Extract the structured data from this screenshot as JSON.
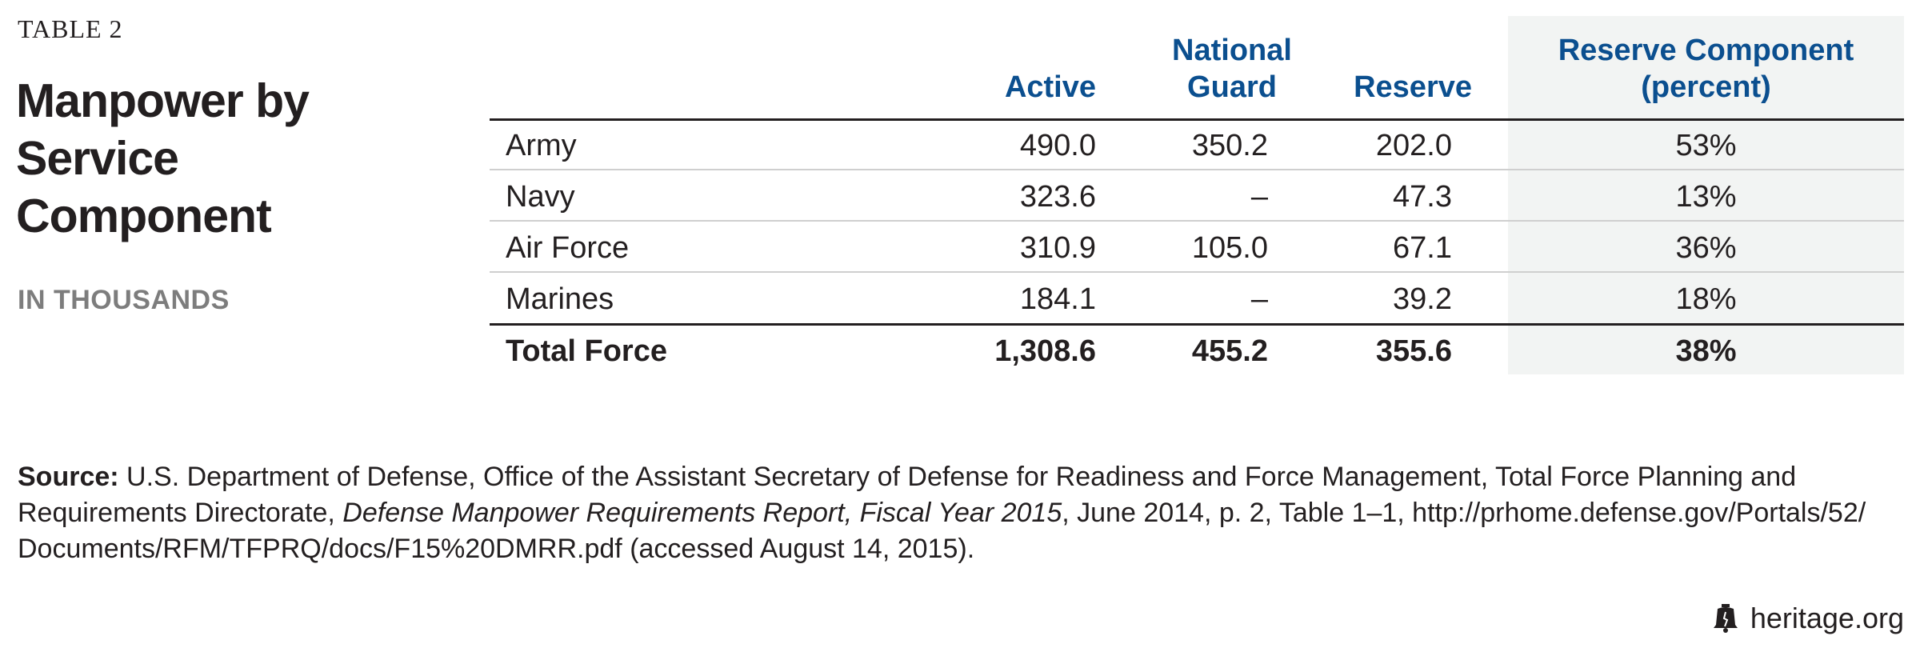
{
  "table_label": "TABLE 2",
  "title": "Manpower by Service Component",
  "subtitle": "IN THOUSANDS",
  "columns": {
    "service": "",
    "active": "Active",
    "national_guard_line1": "National",
    "national_guard_line2": "Guard",
    "reserve": "Reserve",
    "reserve_pct_line1": "Reserve Component",
    "reserve_pct_line2": "(percent)"
  },
  "rows": [
    {
      "service": "Army",
      "active": "490.0",
      "guard": "350.2",
      "reserve": "202.0",
      "pct": "53%"
    },
    {
      "service": "Navy",
      "active": "323.6",
      "guard": "–",
      "reserve": "47.3",
      "pct": "13%"
    },
    {
      "service": "Air Force",
      "active": "310.9",
      "guard": "105.0",
      "reserve": "67.1",
      "pct": "36%"
    },
    {
      "service": "Marines",
      "active": "184.1",
      "guard": "–",
      "reserve": "39.2",
      "pct": "18%"
    }
  ],
  "total": {
    "service": "Total Force",
    "active": "1,308.6",
    "guard": "455.2",
    "reserve": "355.6",
    "pct": "38%"
  },
  "source": {
    "label": "Source:",
    "text_before": " U.S. Department of Defense, Office of the Assistant Secretary of Defense for Readiness and Force Management, Total Force Planning and Requirements Directorate, ",
    "italic": "Defense Manpower Requirements Report, Fiscal Year 2015",
    "text_after": ", June 2014, p. 2, Table 1–1, http://prhome.defense.gov/Portals/52/ Documents/RFM/TFPRQ/docs/F15%20DMRR.pdf (accessed August 14, 2015)."
  },
  "footer": {
    "site": "heritage.org",
    "icon": "liberty-bell-icon"
  },
  "colors": {
    "header_blue": "#0b4f8f",
    "shade": "#f2f4f3",
    "subtitle_gray": "#7d7d7d"
  },
  "chart_data": {
    "type": "table",
    "title": "Manpower by Service Component",
    "subtitle": "IN THOUSANDS",
    "columns": [
      "",
      "Active",
      "National Guard",
      "Reserve",
      "Reserve Component (percent)"
    ],
    "rows": [
      [
        "Army",
        490.0,
        350.2,
        202.0,
        "53%"
      ],
      [
        "Navy",
        323.6,
        "–",
        47.3,
        "13%"
      ],
      [
        "Air Force",
        310.9,
        105.0,
        67.1,
        "36%"
      ],
      [
        "Marines",
        184.1,
        "–",
        39.2,
        "18%"
      ],
      [
        "Total Force",
        1308.6,
        455.2,
        355.6,
        "38%"
      ]
    ]
  }
}
